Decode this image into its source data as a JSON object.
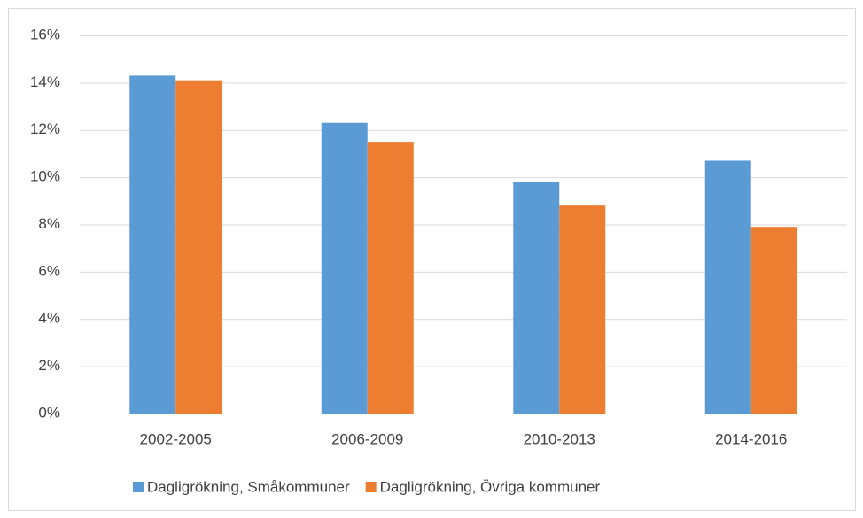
{
  "chart_data": {
    "type": "bar",
    "categories": [
      "2002-2005",
      "2006-2009",
      "2010-2013",
      "2014-2016"
    ],
    "series": [
      {
        "name": "Dagligrökning, Småkommuner",
        "color": "#5b9bd5",
        "values": [
          14.3,
          12.3,
          9.8,
          10.7
        ]
      },
      {
        "name": "Dagligrökning, Övriga kommuner",
        "color": "#ed7d31",
        "values": [
          14.1,
          11.5,
          8.8,
          7.9
        ]
      }
    ],
    "ylim": [
      0,
      16
    ],
    "yticks": [
      {
        "value": 0,
        "label": "0%"
      },
      {
        "value": 2,
        "label": "2%"
      },
      {
        "value": 4,
        "label": "4%"
      },
      {
        "value": 6,
        "label": "6%"
      },
      {
        "value": 8,
        "label": "8%"
      },
      {
        "value": 10,
        "label": "10%"
      },
      {
        "value": 12,
        "label": "12%"
      },
      {
        "value": 14,
        "label": "14%"
      },
      {
        "value": 16,
        "label": "16%"
      }
    ],
    "grid": true,
    "legend": "bottom"
  }
}
